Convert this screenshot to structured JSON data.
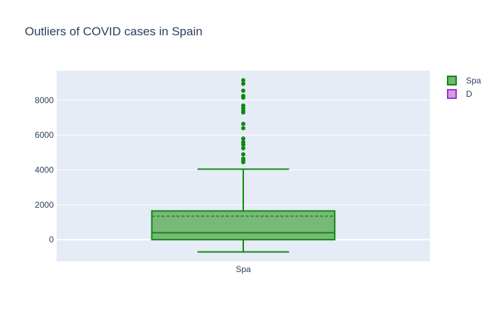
{
  "chart_data": {
    "type": "box",
    "title": "Outliers of COVID cases in Spain",
    "xlabel": "",
    "ylabel": "",
    "categories": [
      "Spa"
    ],
    "ylim": [
      -1250,
      9700
    ],
    "y_ticks": [
      0,
      2000,
      4000,
      6000,
      8000
    ],
    "y_tick_labels": [
      "0",
      "2000",
      "4000",
      "6000",
      "8000"
    ],
    "grid": true,
    "legend_position": "top-right",
    "legend": [
      {
        "name": "Spa",
        "fill": "#72b572",
        "stroke": "#118811"
      },
      {
        "name": "D",
        "fill": "#d59be8",
        "stroke": "#9933cc"
      }
    ],
    "series": [
      {
        "name": "Spa",
        "category": "Spa",
        "lower_fence": -700,
        "q1": 0,
        "median": 400,
        "q3": 1650,
        "upper_fence": 4050,
        "mean": 1350,
        "outliers": [
          4450,
          4550,
          4650,
          4900,
          5250,
          5450,
          5600,
          5800,
          6400,
          6650,
          7300,
          7400,
          7550,
          7700,
          8150,
          8250,
          8550,
          8950,
          9150
        ],
        "color": "#118811",
        "fill": "#72b572"
      }
    ]
  }
}
